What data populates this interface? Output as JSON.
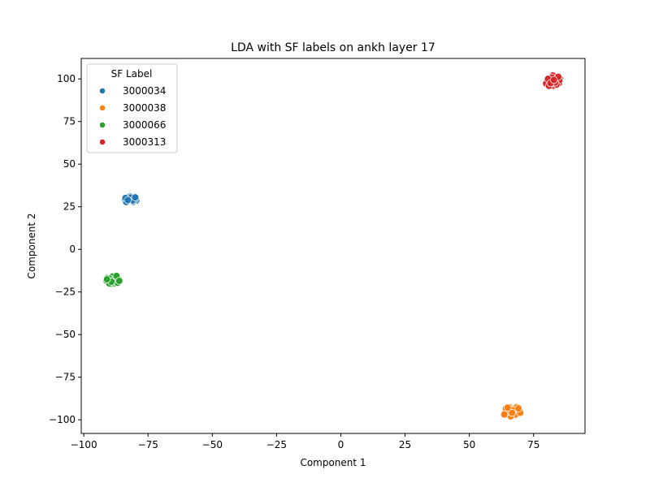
{
  "chart_data": {
    "type": "scatter",
    "title": "LDA with SF labels on ankh layer 17",
    "xlabel": "Component 1",
    "ylabel": "Component 2",
    "xlim": [
      -101,
      95
    ],
    "ylim": [
      -108,
      112
    ],
    "xticks": [
      -100,
      -75,
      -50,
      -25,
      0,
      25,
      50,
      75
    ],
    "xtick_labels": [
      "−100",
      "−75",
      "−50",
      "−25",
      "0",
      "25",
      "50",
      "75"
    ],
    "yticks": [
      -100,
      -75,
      -50,
      -25,
      0,
      25,
      50,
      75,
      100
    ],
    "ytick_labels": [
      "−100",
      "−75",
      "−50",
      "−25",
      "0",
      "25",
      "50",
      "75",
      "100"
    ],
    "grid": false,
    "legend": {
      "title": "SF Label",
      "position": "top-left"
    },
    "series": [
      {
        "name": "3000034",
        "color": "#1f77b4",
        "points": [
          [
            -82.0,
            29.0
          ],
          [
            -80.5,
            30.2
          ],
          [
            -83.2,
            28.4
          ],
          [
            -81.3,
            28.1
          ],
          [
            -79.9,
            29.6
          ],
          [
            -82.7,
            30.6
          ],
          [
            -84.0,
            29.3
          ],
          [
            -80.8,
            27.9
          ],
          [
            -81.9,
            31.0
          ],
          [
            -79.6,
            28.6
          ],
          [
            -83.5,
            27.8
          ],
          [
            -82.3,
            29.8
          ],
          [
            -80.2,
            29.1
          ],
          [
            -81.6,
            30.4
          ],
          [
            -83.8,
            30.1
          ],
          [
            -81.0,
            28.7
          ],
          [
            -82.9,
            28.9
          ],
          [
            -80.0,
            30.5
          ]
        ]
      },
      {
        "name": "3000038",
        "color": "#ff7f0e",
        "points": [
          [
            66.0,
            -95.0
          ],
          [
            67.5,
            -93.2
          ],
          [
            65.2,
            -96.6
          ],
          [
            68.7,
            -95.8
          ],
          [
            64.6,
            -94.1
          ],
          [
            66.8,
            -97.5
          ],
          [
            69.5,
            -94.7
          ],
          [
            65.7,
            -92.7
          ],
          [
            67.2,
            -96.3
          ],
          [
            63.9,
            -95.6
          ],
          [
            68.1,
            -93.6
          ],
          [
            66.4,
            -93.9
          ],
          [
            65.0,
            -97.1
          ],
          [
            67.9,
            -97.0
          ],
          [
            69.8,
            -95.9
          ],
          [
            64.2,
            -93.4
          ],
          [
            66.1,
            -98.0
          ],
          [
            68.4,
            -92.6
          ],
          [
            65.4,
            -95.3
          ],
          [
            67.0,
            -94.4
          ],
          [
            63.6,
            -96.9
          ],
          [
            69.1,
            -93.3
          ],
          [
            66.6,
            -95.9
          ],
          [
            64.9,
            -92.9
          ]
        ]
      },
      {
        "name": "3000066",
        "color": "#2ca02c",
        "points": [
          [
            -89.0,
            -18.0
          ],
          [
            -87.6,
            -16.8
          ],
          [
            -90.4,
            -19.3
          ],
          [
            -88.2,
            -19.9
          ],
          [
            -86.5,
            -17.6
          ],
          [
            -90.9,
            -16.9
          ],
          [
            -89.6,
            -20.3
          ],
          [
            -87.1,
            -18.9
          ],
          [
            -88.8,
            -15.9
          ],
          [
            -91.2,
            -18.4
          ],
          [
            -86.8,
            -19.6
          ],
          [
            -89.9,
            -17.2
          ],
          [
            -88.0,
            -17.5
          ],
          [
            -90.1,
            -20.0
          ],
          [
            -87.3,
            -15.6
          ],
          [
            -86.2,
            -18.5
          ],
          [
            -89.3,
            -19.0
          ],
          [
            -91.0,
            -17.6
          ]
        ]
      },
      {
        "name": "3000313",
        "color": "#d62728",
        "points": [
          [
            82.0,
            98.0
          ],
          [
            83.6,
            99.8
          ],
          [
            80.9,
            96.9
          ],
          [
            84.9,
            97.6
          ],
          [
            81.4,
            100.5
          ],
          [
            82.8,
            96.0
          ],
          [
            85.2,
            100.1
          ],
          [
            80.3,
            98.9
          ],
          [
            83.1,
            101.4
          ],
          [
            81.8,
            99.2
          ],
          [
            84.3,
            98.4
          ],
          [
            79.9,
            97.3
          ],
          [
            82.5,
            102.0
          ],
          [
            85.0,
            99.0
          ],
          [
            81.0,
            95.9
          ],
          [
            83.9,
            96.6
          ],
          [
            82.2,
            100.8
          ],
          [
            80.6,
            100.0
          ],
          [
            84.6,
            101.2
          ],
          [
            83.3,
            97.8
          ],
          [
            81.6,
            97.5
          ],
          [
            82.9,
            99.4
          ]
        ]
      }
    ]
  }
}
